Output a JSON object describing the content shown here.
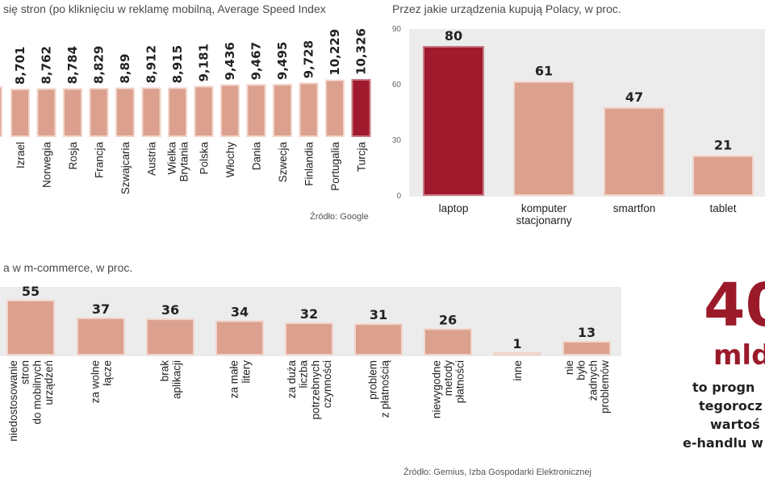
{
  "colors": {
    "bar": "#dca08e",
    "bar_stroke": "#f1d5cb",
    "highlight": "#a0192d",
    "panel": "#ececec",
    "big_number": "#9b1a2a"
  },
  "chart_data": [
    {
      "type": "bar",
      "title": "się stron (po kliknięciu w reklamę mobilną, Average Speed Index",
      "source": "Źródło: Google",
      "categories": [
        "Izrael",
        "Norwegia",
        "Rosja",
        "Francja",
        "Szwajcaria",
        "Austria",
        "Wielka Brytania",
        "Polska",
        "Włochy",
        "Dania",
        "Szwecja",
        "Finlandia",
        "Portugalia",
        "Turcja"
      ],
      "values": [
        8.701,
        8.762,
        8.784,
        8.829,
        8.89,
        8.912,
        8.915,
        9.181,
        9.436,
        9.467,
        9.495,
        9.728,
        10.229,
        10.326
      ],
      "value_labels": [
        "8,701",
        "8,762",
        "8,784",
        "8,829",
        "8,89",
        "8,912",
        "8,915",
        "9,181",
        "9,436",
        "9,467",
        "9,495",
        "9,728",
        "10,229",
        "10,326"
      ],
      "highlight": "Turcja"
    },
    {
      "type": "bar",
      "title": "Przez jakie urządzenia kupują Polacy, w proc.",
      "categories": [
        "laptop",
        "komputer stacjonarny",
        "smartfon",
        "tablet"
      ],
      "values": [
        80,
        61,
        47,
        21
      ],
      "y_ticks": [
        "0",
        "30",
        "60",
        "90"
      ],
      "ylim": [
        0,
        90
      ],
      "highlight": "laptop"
    },
    {
      "type": "bar",
      "title": "a w m-commerce, w proc.",
      "source": "Źródło: Gemius, Izba Gospodarki Elektronicznej",
      "categories": [
        "niedostosowanie stron do mobilnych urządzeń",
        "za wolne łącze",
        "brak aplikacji",
        "za małe litery",
        "za duża liczba potrzebnych czynności",
        "problem z płatnością",
        "niewygodne metody płatności",
        "inne",
        "nie było żadnych problemów"
      ],
      "values": [
        55,
        37,
        36,
        34,
        32,
        31,
        26,
        1,
        13
      ]
    }
  ],
  "callout": {
    "big_number": "40",
    "unit": "mld",
    "lines": [
      "to progn",
      "tegorocz",
      "wartoś",
      "e-handlu w"
    ]
  }
}
